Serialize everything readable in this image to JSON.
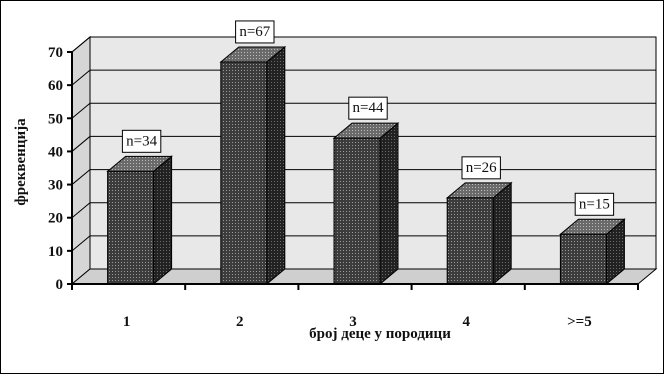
{
  "chart_data": {
    "type": "bar",
    "categories": [
      "1",
      "2",
      "3",
      "4",
      ">=5"
    ],
    "values": [
      34,
      67,
      44,
      26,
      15
    ],
    "data_labels": [
      "n=34",
      "n=67",
      "n=44",
      "n=26",
      "n=15"
    ],
    "ylabel": "фреквенција",
    "xlabel": "број деце у породици",
    "ylim": [
      0,
      70
    ],
    "yticks": [
      0,
      10,
      20,
      30,
      40,
      50,
      60,
      70
    ],
    "grid": true,
    "style": "3d-bar",
    "legend": "none",
    "colors": {
      "bar_front": "#3c3c3c",
      "bar_side": "#262626",
      "bar_top": "#6a6a6a",
      "wall": "#e8e8e8",
      "floor": "#cfcfcf",
      "grid": "#000000"
    }
  }
}
